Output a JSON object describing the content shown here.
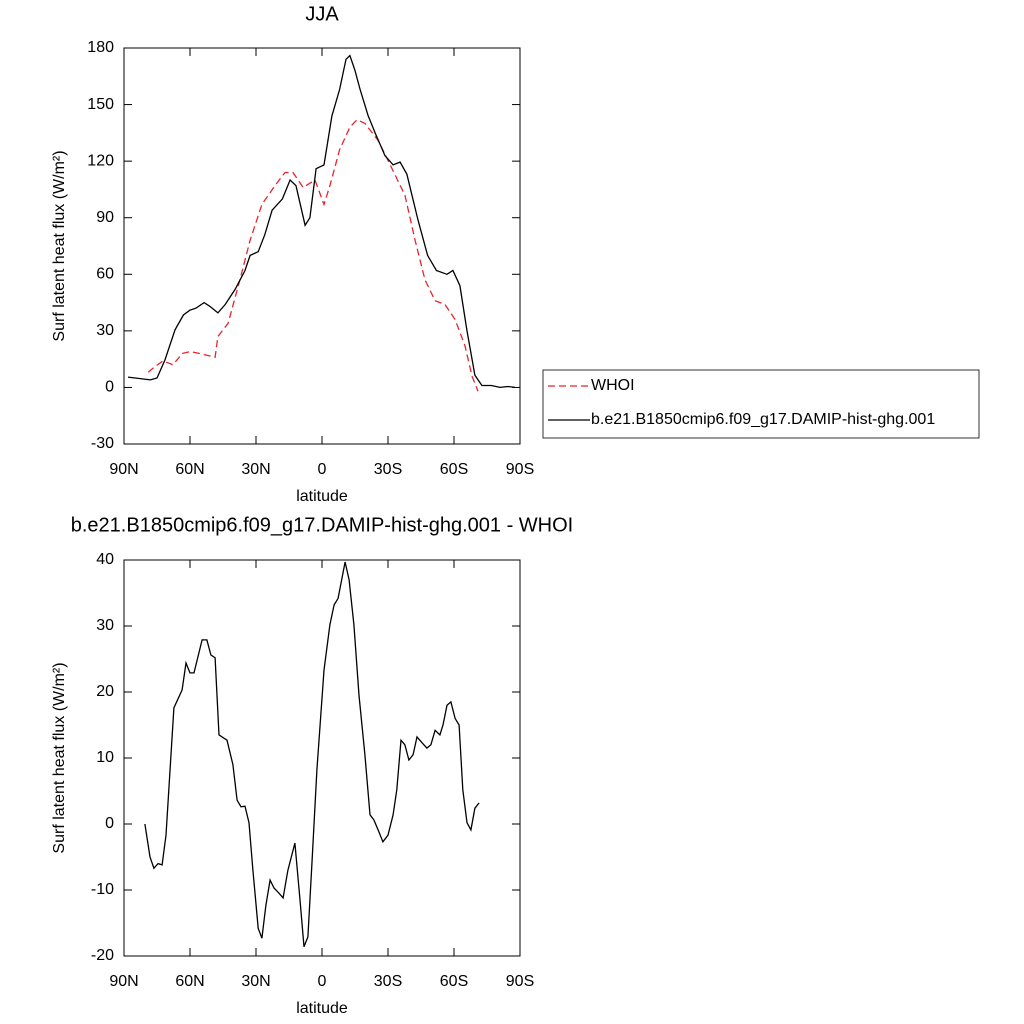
{
  "chart_data": [
    {
      "type": "line",
      "title": "JJA",
      "xlabel": "latitude",
      "ylabel": "Surf latent heat flux (W/m²)",
      "xlim": [
        90,
        -90
      ],
      "xticks": [
        {
          "value": 90,
          "label": "90N"
        },
        {
          "value": 60,
          "label": "60N"
        },
        {
          "value": 30,
          "label": "30N"
        },
        0,
        {
          "value": -30,
          "label": "30S"
        },
        {
          "value": -60,
          "label": "60S"
        },
        {
          "value": -90,
          "label": "90S"
        }
      ],
      "ylim": [
        -30,
        180
      ],
      "yticks": [
        -30,
        0,
        30,
        60,
        90,
        120,
        150,
        180
      ],
      "legend": "right",
      "series": [
        {
          "name": "WHOI",
          "color": "#e8242c",
          "dashed": true,
          "x": [
            79,
            76,
            72.3,
            67.7,
            63.6,
            60,
            55.5,
            48.6,
            47.3,
            42.7,
            37.3,
            32.7,
            27.3,
            21.4,
            16.8,
            13.2,
            8.6,
            3.2,
            -0.9,
            -3.6,
            -8,
            -12.7,
            -15.9,
            -19.5,
            -25.5,
            -31,
            -37.7,
            -42.3,
            -46.8,
            -51.4,
            -55.9,
            -60.5,
            -65,
            -68.2,
            -70.9
          ],
          "values": [
            8,
            11,
            14,
            12,
            18,
            19,
            18,
            16,
            27,
            34,
            57,
            78,
            97,
            107,
            114,
            114,
            106,
            110,
            97,
            107,
            126,
            138,
            142,
            140,
            131,
            118,
            102,
            78,
            57,
            46,
            44,
            36,
            22,
            6,
            -2
          ]
        },
        {
          "name": "b.e21.B1850cmip6.f09_g17.DAMIP-hist-ghg.001",
          "color": "#000000",
          "dashed": false,
          "x": [
            88.2,
            78,
            75,
            71.4,
            66.8,
            63,
            60,
            57.3,
            53.6,
            51,
            47.3,
            44,
            39.5,
            35,
            32.7,
            29,
            26,
            22.7,
            18,
            14.5,
            11.8,
            7.7,
            5.5,
            2.7,
            -0.9,
            -4.5,
            -8,
            -10.9,
            -12.7,
            -15,
            -17.3,
            -21,
            -24.5,
            -28.6,
            -32.3,
            -35.5,
            -38.6,
            -43.6,
            -48,
            -52,
            -56.8,
            -59.5,
            -62.7,
            -65.9,
            -69.5,
            -72.7,
            -77,
            -80.9,
            -84.5,
            -87.7
          ],
          "values": [
            5.5,
            4,
            5,
            14.5,
            30.5,
            38.4,
            41,
            42,
            45,
            43,
            39.5,
            44,
            52,
            62,
            70,
            72,
            81,
            94,
            100,
            110,
            107,
            86,
            90,
            116,
            118,
            144,
            158,
            174,
            176,
            168,
            158,
            144,
            134,
            123,
            118,
            119.5,
            113,
            89,
            70,
            62,
            60,
            62,
            54,
            30,
            6.5,
            1,
            1,
            0,
            0.5,
            0
          ]
        }
      ]
    },
    {
      "type": "line",
      "title": "b.e21.B1850cmip6.f09_g17.DAMIP-hist-ghg.001 - WHOI",
      "xlabel": "latitude",
      "ylabel": "Surf latent heat flux (W/m²)",
      "xlim": [
        90,
        -90
      ],
      "xticks": [
        {
          "value": 90,
          "label": "90N"
        },
        {
          "value": 60,
          "label": "60N"
        },
        {
          "value": 30,
          "label": "30N"
        },
        0,
        {
          "value": -30,
          "label": "30S"
        },
        {
          "value": -60,
          "label": "60S"
        },
        {
          "value": -90,
          "label": "90S"
        }
      ],
      "ylim": [
        -20,
        40
      ],
      "yticks": [
        -20,
        -10,
        0,
        10,
        20,
        30,
        40
      ],
      "color": "#000000",
      "x": [
        80.5,
        78.2,
        76.4,
        74.5,
        72.7,
        70.9,
        67.3,
        63.6,
        61.8,
        60,
        58.2,
        54.5,
        52.3,
        50.5,
        48.6,
        46.8,
        43.2,
        40.5,
        38.6,
        36.8,
        35,
        33.2,
        31.4,
        29,
        27.3,
        25.5,
        23.6,
        21.8,
        19.5,
        17.7,
        15.5,
        12.3,
        10,
        8.2,
        6.4,
        4.5,
        2.3,
        -0.9,
        -3.6,
        -5.5,
        -7.3,
        -10.5,
        -12.3,
        -14.5,
        -16.8,
        -19.5,
        -21.8,
        -23.6,
        -25.5,
        -27.7,
        -30,
        -32.3,
        -34,
        -35.9,
        -37.7,
        -39.5,
        -41.4,
        -43.2,
        -45.5,
        -47.7,
        -49.5,
        -51.4,
        -53.6,
        -55,
        -56.8,
        -58.6,
        -60.5,
        -62.3,
        -64,
        -65.9,
        -67.7,
        -69.5,
        -71.4
      ],
      "values": [
        0,
        -5,
        -6.7,
        -6,
        -6.2,
        -1.7,
        17.6,
        20.3,
        24.4,
        22.9,
        22.9,
        27.9,
        27.9,
        25.6,
        25.2,
        13.5,
        12.7,
        9,
        3.6,
        2.6,
        2.7,
        0.2,
        -7,
        -15.8,
        -17.3,
        -12.3,
        -8.5,
        -9.7,
        -10.5,
        -11.2,
        -7,
        -2.9,
        -11.5,
        -18.6,
        -17.1,
        -5.5,
        8.2,
        23.3,
        30.2,
        33.2,
        34.2,
        39.7,
        37,
        30.2,
        19.5,
        10.5,
        1.4,
        0.6,
        -0.9,
        -2.7,
        -1.7,
        1.4,
        5.2,
        12.7,
        12,
        9.7,
        10.5,
        13.2,
        12.3,
        11.5,
        12,
        14.2,
        13.5,
        15,
        18,
        18.5,
        16,
        15,
        5.2,
        0.2,
        -0.9,
        2.4,
        3.2
      ]
    }
  ]
}
